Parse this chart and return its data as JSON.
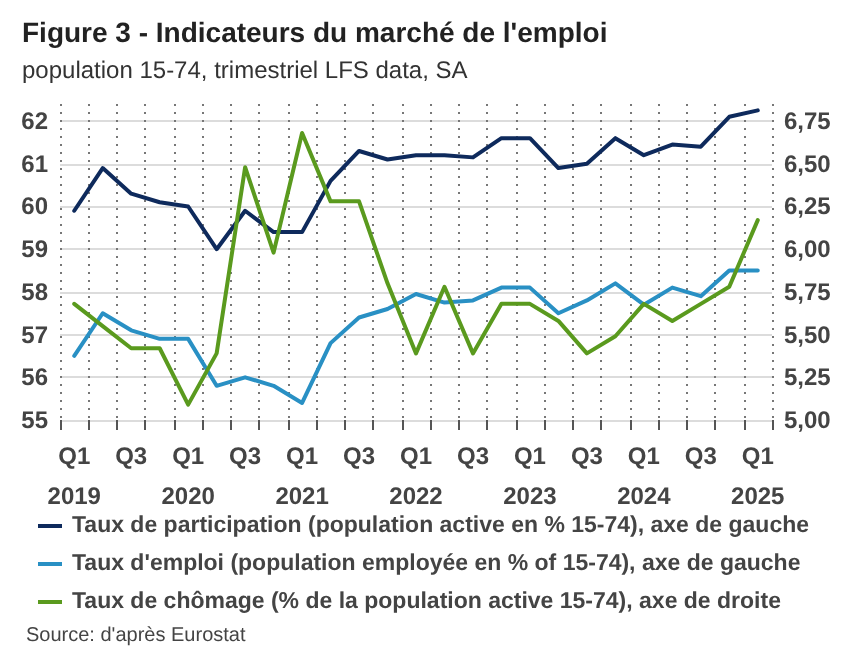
{
  "chart_data": {
    "type": "line",
    "title": "Figure 3 - Indicateurs du marché de l'emploi",
    "subtitle": "population 15-74, trimestriel LFS data, SA",
    "categories": [
      "Q1\n2019",
      null,
      "Q3",
      null,
      "Q1\n2020",
      null,
      "Q3",
      null,
      "Q1\n2021",
      null,
      "Q3",
      null,
      "Q1\n2022",
      null,
      "Q3",
      null,
      "Q1\n2023",
      null,
      "Q3",
      null,
      "Q1\n2024",
      null,
      "Q3",
      null,
      "Q1\n2025"
    ],
    "series": [
      {
        "name": "Taux de participation (population active en % 15-74), axe de gauche",
        "color": "#0e2a5c",
        "values": [
          59.9,
          60.9,
          60.3,
          60.1,
          60.0,
          59.0,
          59.9,
          59.4,
          59.4,
          60.6,
          61.3,
          61.1,
          61.2,
          61.2,
          61.15,
          61.6,
          61.6,
          60.9,
          61.0,
          61.6,
          61.2,
          61.45,
          61.4,
          62.1,
          62.25
        ]
      },
      {
        "name": "Taux d'emploi (population employée en % of 15-74), axe de gauche",
        "color": "#2990c4",
        "values": [
          56.5,
          57.5,
          57.1,
          56.9,
          56.9,
          55.8,
          56.0,
          55.8,
          55.4,
          56.8,
          57.4,
          57.6,
          57.95,
          57.75,
          57.8,
          58.1,
          58.1,
          57.5,
          57.8,
          58.2,
          57.7,
          58.1,
          57.9,
          58.5,
          58.5
        ]
      },
      {
        "name": "Taux de chômage (% de la population active 15-74), axe de droite",
        "color": "#5a9a1e",
        "axis": "y2",
        "values": [
          5.68,
          5.55,
          5.42,
          5.42,
          5.09,
          5.39,
          6.48,
          5.98,
          6.68,
          6.28,
          6.28,
          5.8,
          5.39,
          5.78,
          5.39,
          5.68,
          5.68,
          5.58,
          5.39,
          5.49,
          5.68,
          5.58,
          5.68,
          5.78,
          6.17
        ]
      }
    ],
    "ylim": [
      55,
      62.4
    ],
    "yticks": [
      55,
      56,
      57,
      58,
      59,
      60,
      61,
      62
    ],
    "y2lim": [
      5,
      6.85
    ],
    "y2ticks": [
      {
        "value": 5,
        "label": "5,00"
      },
      {
        "value": 5.25,
        "label": "5,25"
      },
      {
        "value": 5.5,
        "label": "5,50"
      },
      {
        "value": 5.75,
        "label": "5,75"
      },
      {
        "value": 6,
        "label": "6,00"
      },
      {
        "value": 6.25,
        "label": "6,25"
      },
      {
        "value": 6.5,
        "label": "6,50"
      },
      {
        "value": 6.75,
        "label": "6,75"
      }
    ],
    "grid": true,
    "legend": "bottom",
    "marker": "none",
    "line_style": "solid",
    "annotations": [
      "Source: d'après Eurostat"
    ]
  }
}
